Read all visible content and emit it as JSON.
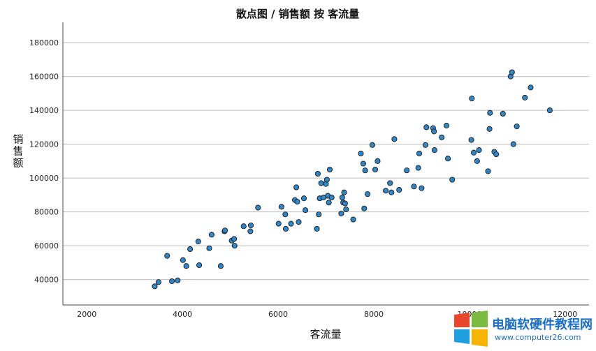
{
  "chart_data": {
    "type": "scatter",
    "title": "散点图 / 销售额 按 客流量",
    "xlabel": "客流量",
    "ylabel": "销售额",
    "xlim": [
      1500,
      12500
    ],
    "ylim": [
      25000,
      192000
    ],
    "x_ticks": [
      2000,
      4000,
      6000,
      8000,
      10000,
      12000
    ],
    "y_ticks": [
      40000,
      60000,
      80000,
      100000,
      120000,
      140000,
      160000,
      180000
    ],
    "grid": "horizontal",
    "point_color": "#2f86c8",
    "point_edge": "#1a1a1a",
    "points": [
      {
        "x": 3420,
        "y": 36000
      },
      {
        "x": 3500,
        "y": 38500
      },
      {
        "x": 3680,
        "y": 54000
      },
      {
        "x": 3780,
        "y": 39000
      },
      {
        "x": 3900,
        "y": 39500
      },
      {
        "x": 4010,
        "y": 51500
      },
      {
        "x": 4080,
        "y": 48000
      },
      {
        "x": 4160,
        "y": 58000
      },
      {
        "x": 4330,
        "y": 62500
      },
      {
        "x": 4350,
        "y": 48500
      },
      {
        "x": 4560,
        "y": 58500
      },
      {
        "x": 4610,
        "y": 66500
      },
      {
        "x": 4800,
        "y": 48000
      },
      {
        "x": 4880,
        "y": 68500
      },
      {
        "x": 4890,
        "y": 69000
      },
      {
        "x": 5030,
        "y": 63000
      },
      {
        "x": 5080,
        "y": 64000
      },
      {
        "x": 5090,
        "y": 60000
      },
      {
        "x": 5280,
        "y": 71500
      },
      {
        "x": 5420,
        "y": 68500
      },
      {
        "x": 5430,
        "y": 72000
      },
      {
        "x": 5580,
        "y": 82500
      },
      {
        "x": 6010,
        "y": 73000
      },
      {
        "x": 6070,
        "y": 83000
      },
      {
        "x": 6150,
        "y": 78500
      },
      {
        "x": 6160,
        "y": 70000
      },
      {
        "x": 6270,
        "y": 73000
      },
      {
        "x": 6350,
        "y": 87000
      },
      {
        "x": 6380,
        "y": 94500
      },
      {
        "x": 6400,
        "y": 86000
      },
      {
        "x": 6430,
        "y": 74000
      },
      {
        "x": 6540,
        "y": 88000
      },
      {
        "x": 6570,
        "y": 81000
      },
      {
        "x": 6810,
        "y": 70000
      },
      {
        "x": 6830,
        "y": 102500
      },
      {
        "x": 6850,
        "y": 78500
      },
      {
        "x": 6870,
        "y": 88000
      },
      {
        "x": 6900,
        "y": 97000
      },
      {
        "x": 6950,
        "y": 88500
      },
      {
        "x": 7000,
        "y": 96500
      },
      {
        "x": 7020,
        "y": 99000
      },
      {
        "x": 7040,
        "y": 89500
      },
      {
        "x": 7060,
        "y": 85500
      },
      {
        "x": 7080,
        "y": 105000
      },
      {
        "x": 7120,
        "y": 88500
      },
      {
        "x": 7320,
        "y": 79000
      },
      {
        "x": 7340,
        "y": 88500
      },
      {
        "x": 7360,
        "y": 85500
      },
      {
        "x": 7380,
        "y": 91500
      },
      {
        "x": 7400,
        "y": 85000
      },
      {
        "x": 7420,
        "y": 81500
      },
      {
        "x": 7570,
        "y": 75500
      },
      {
        "x": 7730,
        "y": 114500
      },
      {
        "x": 7780,
        "y": 108500
      },
      {
        "x": 7800,
        "y": 82000
      },
      {
        "x": 7820,
        "y": 104500
      },
      {
        "x": 7870,
        "y": 90500
      },
      {
        "x": 7970,
        "y": 119500
      },
      {
        "x": 8030,
        "y": 105000
      },
      {
        "x": 8080,
        "y": 110000
      },
      {
        "x": 8250,
        "y": 92500
      },
      {
        "x": 8340,
        "y": 97000
      },
      {
        "x": 8370,
        "y": 91500
      },
      {
        "x": 8430,
        "y": 123000
      },
      {
        "x": 8530,
        "y": 93000
      },
      {
        "x": 8690,
        "y": 104500
      },
      {
        "x": 8840,
        "y": 95000
      },
      {
        "x": 8930,
        "y": 106000
      },
      {
        "x": 8950,
        "y": 114500
      },
      {
        "x": 9000,
        "y": 94000
      },
      {
        "x": 9080,
        "y": 119500
      },
      {
        "x": 9100,
        "y": 130000
      },
      {
        "x": 9240,
        "y": 129500
      },
      {
        "x": 9260,
        "y": 127500
      },
      {
        "x": 9270,
        "y": 116500
      },
      {
        "x": 9420,
        "y": 124000
      },
      {
        "x": 9520,
        "y": 131000
      },
      {
        "x": 9550,
        "y": 111500
      },
      {
        "x": 9640,
        "y": 99000
      },
      {
        "x": 10040,
        "y": 122500
      },
      {
        "x": 10050,
        "y": 147000
      },
      {
        "x": 10090,
        "y": 115000
      },
      {
        "x": 10160,
        "y": 110000
      },
      {
        "x": 10200,
        "y": 116500
      },
      {
        "x": 10390,
        "y": 104000
      },
      {
        "x": 10420,
        "y": 129000
      },
      {
        "x": 10430,
        "y": 138500
      },
      {
        "x": 10520,
        "y": 115500
      },
      {
        "x": 10560,
        "y": 114000
      },
      {
        "x": 10700,
        "y": 138000
      },
      {
        "x": 10860,
        "y": 160000
      },
      {
        "x": 10890,
        "y": 162500
      },
      {
        "x": 10920,
        "y": 120000
      },
      {
        "x": 10990,
        "y": 130500
      },
      {
        "x": 11160,
        "y": 147500
      },
      {
        "x": 11280,
        "y": 153500
      },
      {
        "x": 11680,
        "y": 140000
      }
    ]
  },
  "watermark": {
    "text": "电脑软硬件教程网",
    "url": "www.computer26.com",
    "logo_colors": [
      "#e8452c",
      "#7cbb42",
      "#1e9fe0",
      "#f7b500"
    ]
  }
}
